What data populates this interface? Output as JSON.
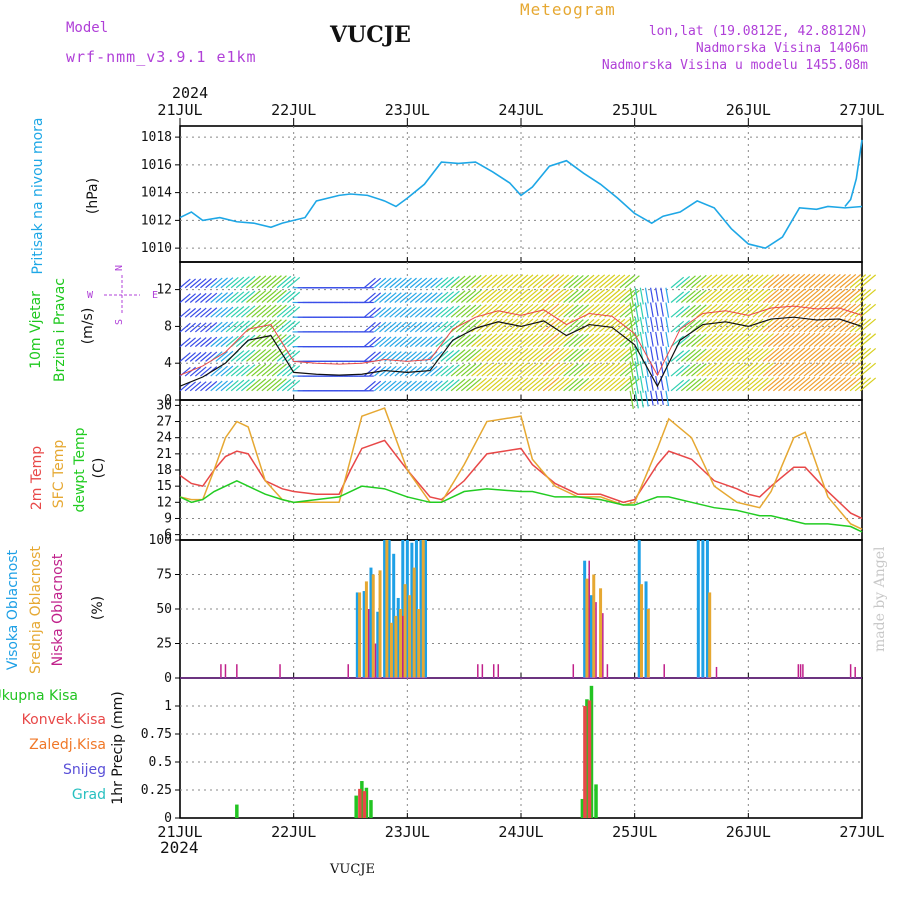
{
  "header": {
    "model_label": "Model",
    "model_name": "wrf-nmm_v3.9.1 e1km",
    "station": "VUCJE",
    "meteogram": "Meteogram",
    "lonlat": "lon,lat (19.0812E, 42.8812N)",
    "altitude": "Nadmorska Visina 1406m",
    "model_altitude": "Nadmorska Visina u modelu 1455.08m",
    "year": "2024",
    "footer": "VUCJE",
    "watermark": "made by Angel"
  },
  "colors": {
    "pressure": "#1ea7e6",
    "wind_label": "#1ec81e",
    "compass": "#b040d8",
    "temp2m": "#e84848",
    "sfc": "#e6a832",
    "dewpt": "#22cc22",
    "cloud_high": "#1ea0e6",
    "cloud_mid": "#e6a832",
    "cloud_low": "#c0208a",
    "rain_total": "#22c422",
    "rain_conv": "#e84848",
    "rain_strat": "#f07828",
    "snow": "#5a50d8",
    "hail": "#28c0c0"
  },
  "chart_data": [
    {
      "type": "line",
      "panel": "pressure",
      "ylabel": [
        "Pritisak na nivou mora",
        "(hPa)"
      ],
      "x_ticks": [
        "21JUL",
        "22JUL",
        "23JUL",
        "24JUL",
        "25JUL",
        "26JUL",
        "27JUL"
      ],
      "yticks": [
        1010,
        1012,
        1014,
        1016,
        1018
      ],
      "ylim": [
        1009,
        1018.8
      ],
      "grid": true,
      "series": [
        {
          "x": [
            0,
            0.1,
            0.2,
            0.35,
            0.5,
            0.65,
            0.8,
            0.9,
            1.1,
            1.2,
            1.4,
            1.5,
            1.65,
            1.8,
            1.9,
            2.0,
            2.15,
            2.3,
            2.45,
            2.6,
            2.75,
            2.9,
            3.0,
            3.1,
            3.25,
            3.4,
            3.55,
            3.7,
            3.85,
            4.0,
            4.15,
            4.25,
            4.4,
            4.55,
            4.7,
            4.85,
            5.0,
            5.15,
            5.3,
            5.45,
            5.6,
            5.7,
            5.85,
            6.0
          ],
          "y": [
            1012.2,
            1012.6,
            1012.0,
            1012.2,
            1011.9,
            1011.8,
            1011.5,
            1011.8,
            1012.2,
            1013.4,
            1013.8,
            1013.9,
            1013.8,
            1013.4,
            1013.0,
            1013.6,
            1014.6,
            1016.2,
            1016.1,
            1016.2,
            1015.5,
            1014.7,
            1013.8,
            1014.4,
            1015.9,
            1016.3,
            1015.4,
            1014.6,
            1013.6,
            1012.5,
            1011.8,
            1012.3,
            1012.6,
            1013.4,
            1012.9,
            1011.4,
            1010.3,
            1010.0,
            1010.8,
            1012.9,
            1012.8,
            1013.0,
            1012.9,
            1013.0
          ],
          "x2": [
            5.85,
            5.9,
            5.95,
            6.0
          ],
          "y2": [
            1013.0,
            1013.5,
            1015.0,
            1017.8
          ]
        }
      ]
    },
    {
      "type": "line",
      "panel": "wind",
      "ylabel": [
        "10m Vjetar",
        "Brzina i Pravac",
        "(m/s)"
      ],
      "compass": {
        "north": "N",
        "south": "S",
        "west": "W",
        "east": "E"
      },
      "yticks": [
        0,
        4,
        8,
        12
      ],
      "ylim": [
        0,
        15
      ],
      "grid": true,
      "series": [
        {
          "x": [
            0,
            0.2,
            0.4,
            0.6,
            0.8,
            1.0,
            1.2,
            1.4,
            1.6,
            1.8,
            2.0,
            2.2,
            2.4,
            2.6,
            2.8,
            3.0,
            3.2,
            3.4,
            3.6,
            3.8,
            4.0,
            4.2,
            4.4,
            4.6,
            4.8,
            5.0,
            5.2,
            5.4,
            5.6,
            5.8,
            6.0
          ],
          "y": [
            1.5,
            2.5,
            4.0,
            6.5,
            7.0,
            3.0,
            2.8,
            2.7,
            2.8,
            3.2,
            3.0,
            3.2,
            6.5,
            7.8,
            8.5,
            8.0,
            8.6,
            7.0,
            8.2,
            7.9,
            6.0,
            1.5,
            6.5,
            8.2,
            8.5,
            8.0,
            8.8,
            9.0,
            8.7,
            8.8,
            8.0
          ],
          "name": ""
        }
      ]
    },
    {
      "type": "line",
      "panel": "temperature",
      "ylabel": [
        "2m Temp",
        "SFC Temp",
        "dewpt Temp",
        "(C)"
      ],
      "yticks": [
        6,
        9,
        12,
        15,
        18,
        21,
        24,
        27,
        30
      ],
      "ylim": [
        5,
        31
      ],
      "grid": true,
      "series": [
        {
          "name": "2m Temp",
          "x": [
            0,
            0.1,
            0.2,
            0.3,
            0.4,
            0.5,
            0.6,
            0.75,
            0.9,
            1.0,
            1.2,
            1.4,
            1.5,
            1.6,
            1.8,
            2.0,
            2.2,
            2.3,
            2.5,
            2.7,
            3.0,
            3.1,
            3.3,
            3.5,
            3.7,
            3.9,
            4.0,
            4.2,
            4.3,
            4.5,
            4.7,
            4.9,
            5.0,
            5.1,
            5.2,
            5.4,
            5.5,
            5.7,
            5.9,
            6.0
          ],
          "y": [
            17,
            15.5,
            15,
            18,
            20.5,
            21.5,
            21,
            16,
            14.5,
            14,
            13.5,
            13.5,
            18,
            22,
            23.5,
            18,
            13,
            12.5,
            16,
            21,
            22,
            19,
            15.5,
            13.5,
            13.5,
            12,
            12.5,
            19,
            21.5,
            20,
            16,
            14.5,
            13.5,
            13,
            15,
            18.5,
            18.5,
            14,
            10,
            9
          ]
        },
        {
          "name": "SFC Temp",
          "x": [
            0,
            0.1,
            0.2,
            0.3,
            0.4,
            0.5,
            0.6,
            0.75,
            0.9,
            1.0,
            1.2,
            1.4,
            1.5,
            1.6,
            1.8,
            2.0,
            2.2,
            2.3,
            2.5,
            2.7,
            3.0,
            3.1,
            3.3,
            3.5,
            3.7,
            3.9,
            4.0,
            4.2,
            4.3,
            4.5,
            4.7,
            4.9,
            5.0,
            5.1,
            5.2,
            5.4,
            5.5,
            5.7,
            5.9,
            6.0
          ],
          "y": [
            13,
            12.5,
            12.5,
            18,
            24,
            27,
            26,
            16,
            12.5,
            12,
            12,
            12,
            20,
            28,
            29.5,
            18,
            12,
            12,
            19,
            27,
            28,
            20,
            15,
            13,
            13,
            11.5,
            12,
            22,
            27.5,
            24,
            15,
            12,
            11.5,
            11,
            14,
            24,
            25,
            13,
            8,
            7
          ]
        },
        {
          "name": "dewpt Temp",
          "x": [
            0,
            0.1,
            0.2,
            0.3,
            0.4,
            0.5,
            0.6,
            0.75,
            0.9,
            1.0,
            1.2,
            1.4,
            1.5,
            1.6,
            1.8,
            2.0,
            2.2,
            2.3,
            2.5,
            2.7,
            3.0,
            3.1,
            3.3,
            3.5,
            3.7,
            3.9,
            4.0,
            4.2,
            4.3,
            4.5,
            4.7,
            4.9,
            5.0,
            5.1,
            5.2,
            5.4,
            5.5,
            5.7,
            5.9,
            6.0
          ],
          "y": [
            13,
            12,
            12.5,
            14,
            15,
            16,
            15,
            13.5,
            12.5,
            12,
            12.5,
            13,
            14,
            15,
            14.5,
            13,
            12,
            12,
            14,
            14.5,
            14,
            14,
            13,
            13,
            12.5,
            11.5,
            11.5,
            13,
            13,
            12,
            11,
            10.5,
            10,
            9.5,
            9.5,
            8.5,
            8,
            8,
            7.5,
            6.5
          ]
        }
      ]
    },
    {
      "type": "bar",
      "panel": "cloud",
      "ylabel": [
        "Visoka Oblacnost",
        "Srednja Oblacnost",
        "Niska Oblacnost",
        "(%)"
      ],
      "yticks": [
        0,
        25,
        50,
        75,
        100
      ],
      "ylim": [
        0,
        100
      ],
      "grid": true,
      "series": [
        {
          "name": "Visoka Oblacnost",
          "x": [
            1.56,
            1.62,
            1.68,
            1.74,
            1.8,
            1.84,
            1.88,
            1.92,
            1.96,
            2.0,
            2.04,
            2.08,
            2.12,
            2.16,
            3.56,
            3.62,
            4.04,
            4.1,
            4.56,
            4.6,
            4.64
          ],
          "y": [
            62,
            63,
            80,
            48,
            100,
            100,
            90,
            58,
            100,
            100,
            98,
            100,
            100,
            100,
            85,
            60,
            100,
            70,
            100,
            100,
            100
          ]
        },
        {
          "name": "Srednja Oblacnost",
          "x": [
            1.58,
            1.64,
            1.7,
            1.76,
            1.82,
            1.86,
            1.9,
            1.94,
            1.98,
            2.02,
            2.06,
            2.1,
            2.14,
            3.58,
            3.64,
            3.7,
            4.06,
            4.12,
            4.66
          ],
          "y": [
            62,
            70,
            75,
            78,
            100,
            40,
            45,
            50,
            68,
            60,
            80,
            50,
            100,
            72,
            75,
            65,
            68,
            50,
            62
          ]
        },
        {
          "name": "Niska Oblacnost",
          "x": [
            0.36,
            0.4,
            0.5,
            0.88,
            1.48,
            1.66,
            1.72,
            1.96,
            2.62,
            2.66,
            2.76,
            2.8,
            3.46,
            3.6,
            3.66,
            3.72,
            3.76,
            4.26,
            4.72,
            5.44,
            5.46,
            5.48,
            5.9,
            5.94
          ],
          "y": [
            10,
            10,
            10,
            10,
            10,
            50,
            25,
            45,
            10,
            10,
            10,
            10,
            10,
            85,
            55,
            47,
            10,
            10,
            8,
            10,
            10,
            10,
            10,
            8
          ]
        }
      ]
    },
    {
      "type": "bar",
      "panel": "precip",
      "ylabel": [
        "1hr Precip (mm)"
      ],
      "legend": [
        "Ukupna Kisa",
        "Konvek.Kisa",
        "Zaledj.Kisa",
        "Snijeg",
        "Grad"
      ],
      "x_ticks": [
        "21JUL",
        "22JUL",
        "23JUL",
        "24JUL",
        "25JUL",
        "26JUL",
        "27JUL"
      ],
      "yticks": [
        0,
        0.25,
        0.5,
        0.75,
        1
      ],
      "ylim": [
        0,
        1.25
      ],
      "grid": true,
      "series": [
        {
          "name": "Ukupna Kisa",
          "x": [
            0.5,
            1.55,
            1.6,
            1.64,
            1.68,
            3.54,
            3.58,
            3.62,
            3.66
          ],
          "y": [
            0.12,
            0.2,
            0.33,
            0.27,
            0.16,
            0.17,
            1.06,
            1.18,
            0.3
          ]
        },
        {
          "name": "Konvek.Kisa",
          "x": [
            1.6,
            1.64,
            3.58,
            3.62
          ],
          "y": [
            0.26,
            0.24,
            1.0,
            1.05
          ]
        }
      ]
    }
  ]
}
